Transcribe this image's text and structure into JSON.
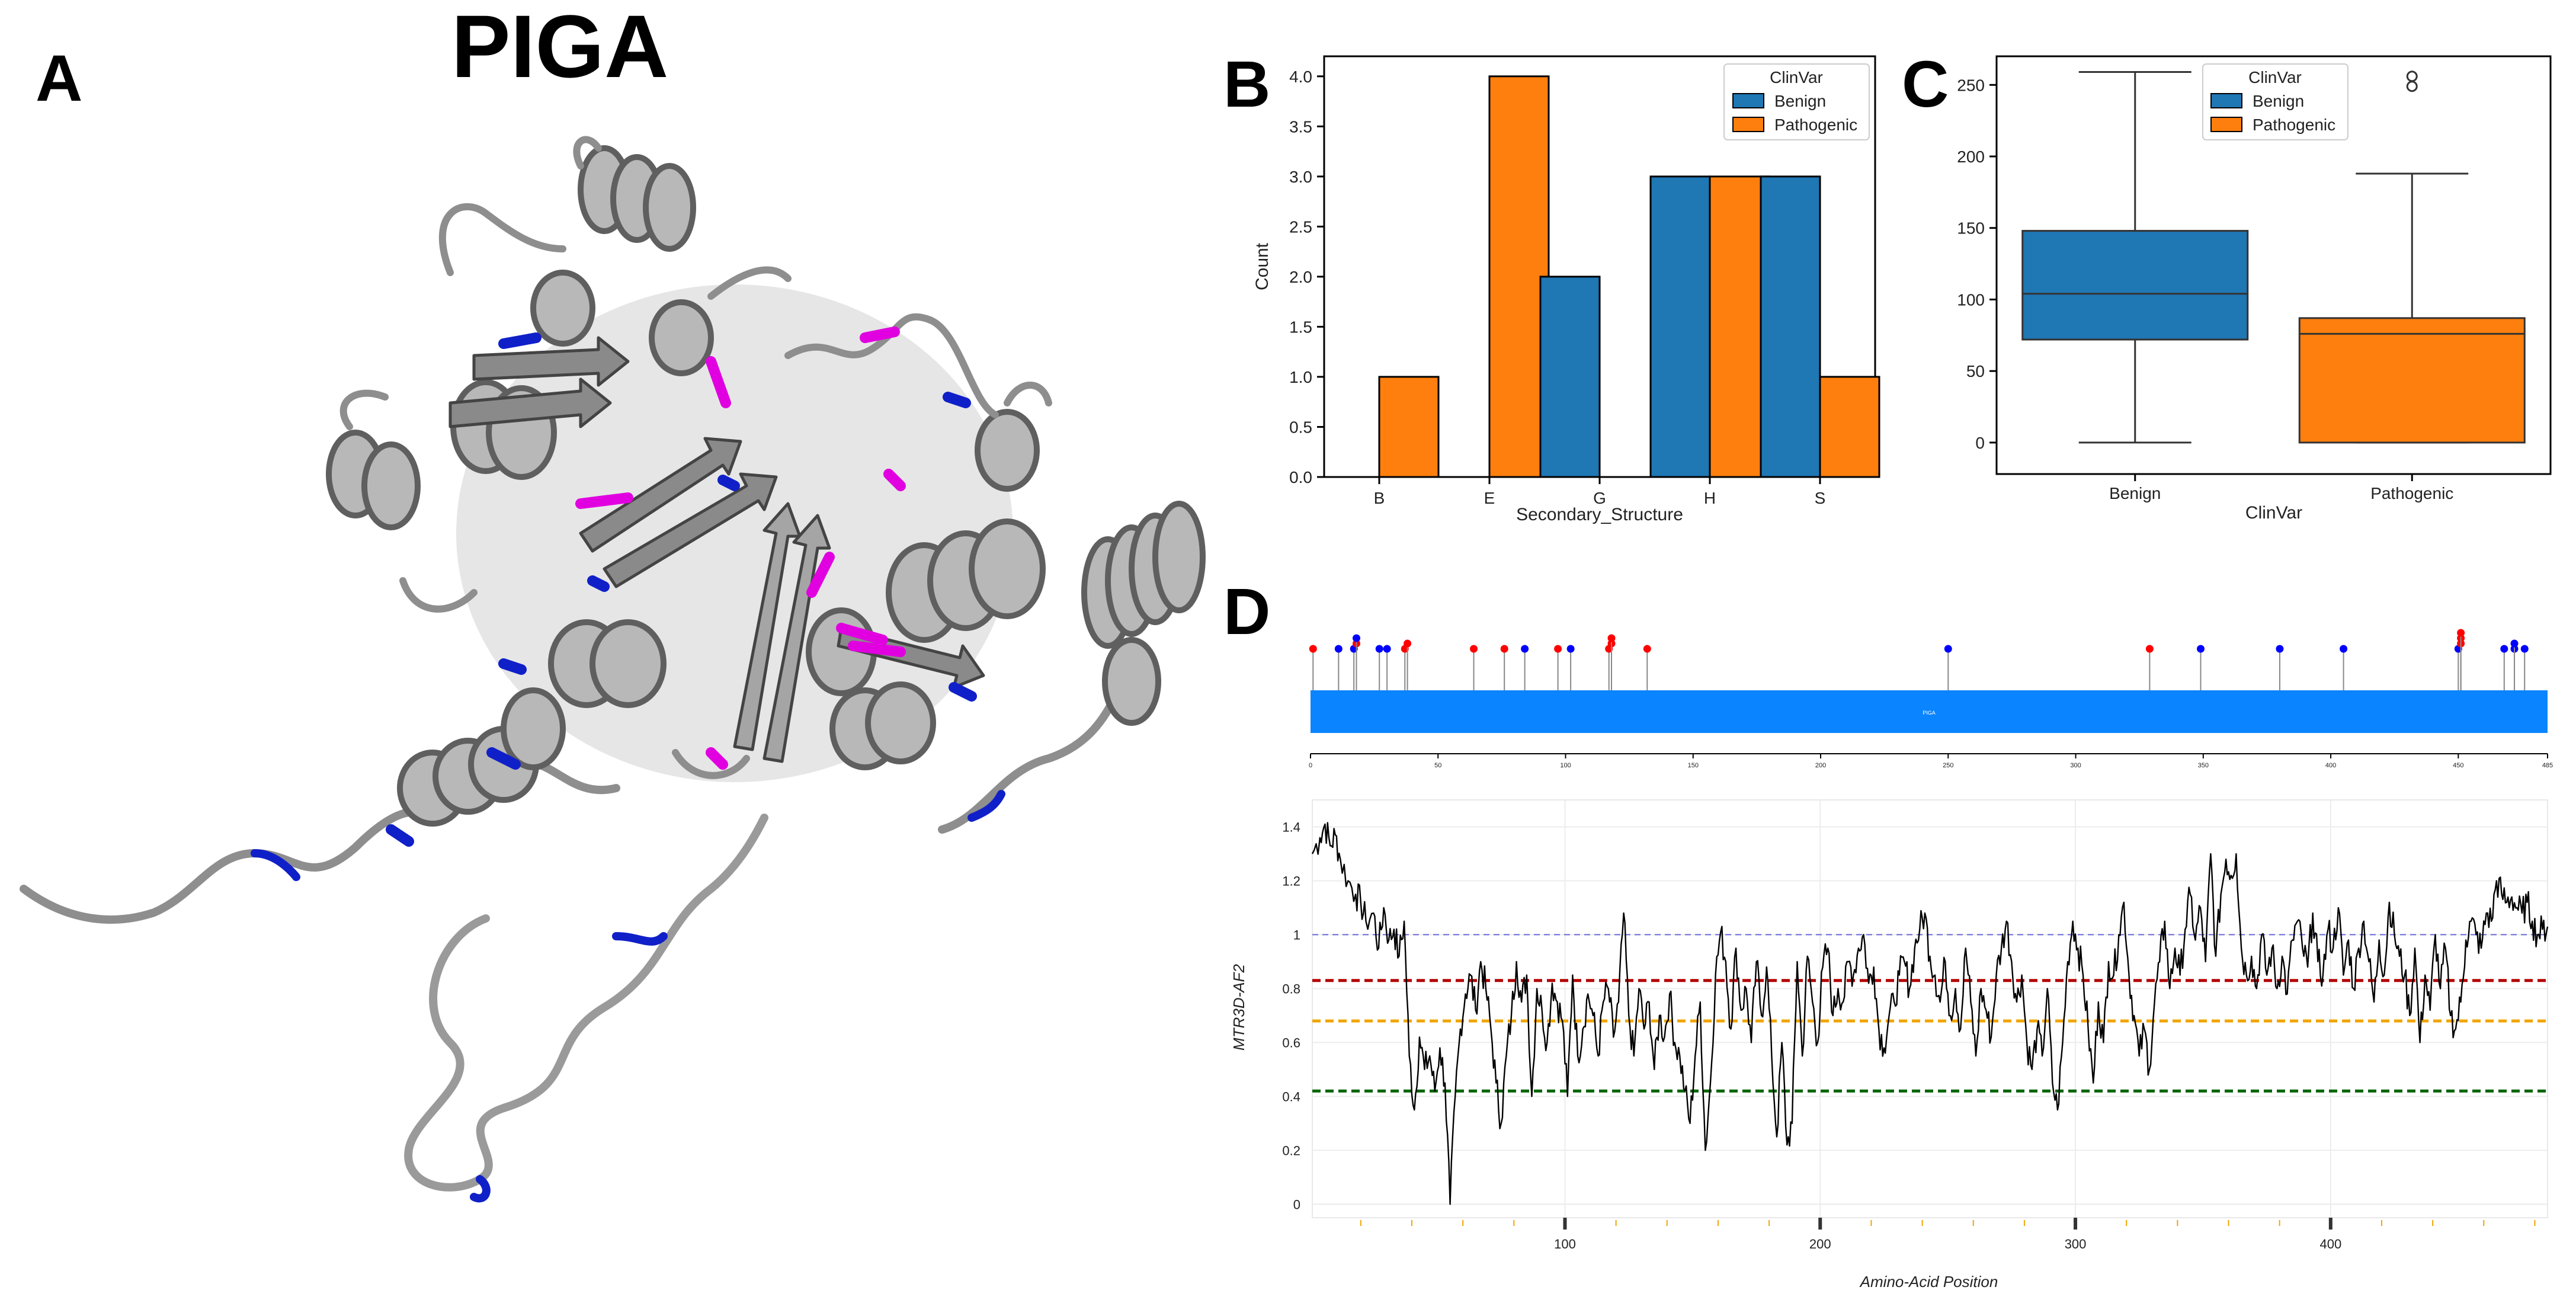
{
  "figure": {
    "title": "PIGA",
    "panel_labels": [
      "A",
      "B",
      "C",
      "D"
    ],
    "colors": {
      "benign": "#1f77b4",
      "pathogenic": "#ff7f0e",
      "lollipop_benign": "#0000ff",
      "lollipop_path": "#ff0000",
      "protein_bar": "#0a84ff",
      "ref1": "#6b6bd6",
      "ref2": "#b30000",
      "ref3": "#f0a500",
      "ref4": "#006400"
    }
  },
  "chart_data": [
    {
      "id": "B",
      "type": "bar",
      "categories": [
        "B",
        "E",
        "G",
        "H",
        "S"
      ],
      "series": [
        {
          "name": "Benign",
          "values": [
            0,
            0,
            2,
            3,
            3
          ]
        },
        {
          "name": "Pathogenic",
          "values": [
            1,
            4,
            0,
            3,
            1
          ]
        }
      ],
      "xlabel": "Secondary_Structure",
      "ylabel": "Count",
      "ylim": [
        0,
        4.2
      ],
      "yticks": [
        "0.0",
        "0.5",
        "1.0",
        "1.5",
        "2.0",
        "2.5",
        "3.0",
        "3.5",
        "4.0"
      ],
      "legend": {
        "title": "ClinVar",
        "entries": [
          "Benign",
          "Pathogenic"
        ],
        "placement": "top-right"
      }
    },
    {
      "id": "C",
      "type": "box",
      "categories": [
        "Benign",
        "Pathogenic"
      ],
      "boxes": [
        {
          "name": "Benign",
          "min": 0,
          "q1": 72,
          "median": 104,
          "q3": 148,
          "max": 259,
          "outliers": []
        },
        {
          "name": "Pathogenic",
          "min": 0,
          "q1": 0,
          "median": 76,
          "q3": 87,
          "max": 188,
          "outliers": [
            249,
            256
          ]
        }
      ],
      "xlabel": "ClinVar",
      "ylabel": "",
      "ylim": [
        -22,
        270
      ],
      "yticks": [
        "0",
        "50",
        "100",
        "150",
        "200",
        "250"
      ],
      "legend": {
        "title": "ClinVar",
        "entries": [
          "Benign",
          "Pathogenic"
        ],
        "placement": "top-center"
      }
    },
    {
      "id": "D-lollipop",
      "type": "lollipop",
      "protein_label": "PIGA",
      "xlim": [
        0,
        485
      ],
      "xticks": [
        "0",
        "50",
        "100",
        "150",
        "200",
        "250",
        "300",
        "350",
        "400",
        "450",
        "485"
      ],
      "variants": [
        {
          "pos": 1,
          "height": 1,
          "class": "pathogenic"
        },
        {
          "pos": 11,
          "height": 1,
          "class": "benign"
        },
        {
          "pos": 17,
          "height": 1,
          "class": "benign"
        },
        {
          "pos": 18,
          "height": 2,
          "class": "pathogenic"
        },
        {
          "pos": 18,
          "height": 3,
          "class": "benign"
        },
        {
          "pos": 27,
          "height": 1,
          "class": "benign"
        },
        {
          "pos": 30,
          "height": 1,
          "class": "benign"
        },
        {
          "pos": 37,
          "height": 1,
          "class": "pathogenic"
        },
        {
          "pos": 38,
          "height": 2,
          "class": "pathogenic"
        },
        {
          "pos": 64,
          "height": 1,
          "class": "pathogenic"
        },
        {
          "pos": 76,
          "height": 1,
          "class": "pathogenic"
        },
        {
          "pos": 84,
          "height": 1,
          "class": "benign"
        },
        {
          "pos": 97,
          "height": 1,
          "class": "pathogenic"
        },
        {
          "pos": 102,
          "height": 1,
          "class": "benign"
        },
        {
          "pos": 117,
          "height": 1,
          "class": "pathogenic"
        },
        {
          "pos": 118,
          "height": 2,
          "class": "pathogenic"
        },
        {
          "pos": 118,
          "height": 3,
          "class": "pathogenic"
        },
        {
          "pos": 132,
          "height": 1,
          "class": "pathogenic"
        },
        {
          "pos": 250,
          "height": 1,
          "class": "benign"
        },
        {
          "pos": 329,
          "height": 1,
          "class": "pathogenic"
        },
        {
          "pos": 349,
          "height": 1,
          "class": "benign"
        },
        {
          "pos": 380,
          "height": 1,
          "class": "benign"
        },
        {
          "pos": 405,
          "height": 1,
          "class": "benign"
        },
        {
          "pos": 450,
          "height": 1,
          "class": "benign"
        },
        {
          "pos": 451,
          "height": 2,
          "class": "pathogenic"
        },
        {
          "pos": 451,
          "height": 3,
          "class": "pathogenic"
        },
        {
          "pos": 451,
          "height": 4,
          "class": "pathogenic"
        },
        {
          "pos": 468,
          "height": 1,
          "class": "benign"
        },
        {
          "pos": 472,
          "height": 1,
          "class": "benign"
        },
        {
          "pos": 472,
          "height": 2,
          "class": "benign"
        },
        {
          "pos": 476,
          "height": 1,
          "class": "benign"
        }
      ]
    },
    {
      "id": "D-line",
      "type": "line",
      "xlabel": "Amino-Acid Position",
      "ylabel": "MTR3D-AF2",
      "xlim": [
        1,
        485
      ],
      "ylim": [
        -0.05,
        1.5
      ],
      "xticks": [
        "100",
        "200",
        "300",
        "400"
      ],
      "yticks": [
        "0",
        "0.2",
        "0.4",
        "0.6",
        "0.8",
        "1",
        "1.2",
        "1.4"
      ],
      "reference_lines": [
        1.0,
        0.83,
        0.68,
        0.42
      ],
      "anchors": [
        [
          1,
          1.3
        ],
        [
          4,
          1.36
        ],
        [
          6,
          1.41
        ],
        [
          8,
          1.33
        ],
        [
          10,
          1.37
        ],
        [
          12,
          1.28
        ],
        [
          15,
          1.2
        ],
        [
          18,
          1.15
        ],
        [
          20,
          1.12
        ],
        [
          22,
          1.05
        ],
        [
          25,
          1.08
        ],
        [
          27,
          0.95
        ],
        [
          29,
          1.1
        ],
        [
          31,
          0.98
        ],
        [
          33,
          1.02
        ],
        [
          35,
          0.92
        ],
        [
          37,
          1.05
        ],
        [
          39,
          0.55
        ],
        [
          41,
          0.35
        ],
        [
          43,
          0.62
        ],
        [
          45,
          0.5
        ],
        [
          47,
          0.55
        ],
        [
          49,
          0.42
        ],
        [
          51,
          0.58
        ],
        [
          53,
          0.45
        ],
        [
          55,
          0.0
        ],
        [
          57,
          0.4
        ],
        [
          59,
          0.65
        ],
        [
          61,
          0.78
        ],
        [
          63,
          0.85
        ],
        [
          65,
          0.72
        ],
        [
          67,
          0.9
        ],
        [
          69,
          0.8
        ],
        [
          71,
          0.65
        ],
        [
          73,
          0.45
        ],
        [
          75,
          0.3
        ],
        [
          77,
          0.55
        ],
        [
          79,
          0.7
        ],
        [
          81,
          0.9
        ],
        [
          83,
          0.75
        ],
        [
          85,
          0.85
        ],
        [
          87,
          0.4
        ],
        [
          89,
          0.8
        ],
        [
          91,
          0.72
        ],
        [
          93,
          0.6
        ],
        [
          95,
          0.82
        ],
        [
          97,
          0.75
        ],
        [
          99,
          0.68
        ],
        [
          101,
          0.4
        ],
        [
          103,
          0.85
        ],
        [
          105,
          0.55
        ],
        [
          107,
          0.65
        ],
        [
          109,
          0.78
        ],
        [
          111,
          0.7
        ],
        [
          113,
          0.55
        ],
        [
          115,
          0.75
        ],
        [
          117,
          0.8
        ],
        [
          119,
          0.62
        ],
        [
          121,
          0.75
        ],
        [
          123,
          1.08
        ],
        [
          125,
          0.7
        ],
        [
          127,
          0.55
        ],
        [
          129,
          0.8
        ],
        [
          131,
          0.65
        ],
        [
          133,
          0.75
        ],
        [
          135,
          0.5
        ],
        [
          137,
          0.7
        ],
        [
          139,
          0.62
        ],
        [
          141,
          0.78
        ],
        [
          143,
          0.6
        ],
        [
          145,
          0.55
        ],
        [
          147,
          0.42
        ],
        [
          149,
          0.3
        ],
        [
          151,
          0.55
        ],
        [
          153,
          0.75
        ],
        [
          155,
          0.2
        ],
        [
          157,
          0.45
        ],
        [
          159,
          0.85
        ],
        [
          161,
          1.01
        ],
        [
          163,
          0.9
        ],
        [
          165,
          0.65
        ],
        [
          167,
          0.95
        ],
        [
          169,
          0.72
        ],
        [
          171,
          0.8
        ],
        [
          173,
          0.6
        ],
        [
          175,
          0.9
        ],
        [
          177,
          0.7
        ],
        [
          179,
          0.88
        ],
        [
          181,
          0.55
        ],
        [
          183,
          0.25
        ],
        [
          185,
          0.6
        ],
        [
          187,
          0.22
        ],
        [
          189,
          0.3
        ],
        [
          191,
          0.9
        ],
        [
          193,
          0.55
        ],
        [
          195,
          0.92
        ],
        [
          197,
          0.75
        ],
        [
          199,
          0.6
        ],
        [
          201,
          0.88
        ],
        [
          203,
          0.95
        ],
        [
          205,
          0.7
        ],
        [
          207,
          0.8
        ],
        [
          209,
          0.75
        ],
        [
          211,
          0.9
        ],
        [
          213,
          0.85
        ],
        [
          215,
          0.95
        ],
        [
          217,
          1.0
        ],
        [
          219,
          0.82
        ],
        [
          221,
          0.88
        ],
        [
          223,
          0.65
        ],
        [
          225,
          0.58
        ],
        [
          227,
          0.7
        ],
        [
          229,
          0.75
        ],
        [
          231,
          0.85
        ],
        [
          233,
          0.9
        ],
        [
          235,
          0.8
        ],
        [
          237,
          0.95
        ],
        [
          239,
          1.02
        ],
        [
          241,
          1.08
        ],
        [
          243,
          0.92
        ],
        [
          245,
          0.85
        ],
        [
          247,
          0.75
        ],
        [
          249,
          0.9
        ],
        [
          251,
          0.7
        ],
        [
          253,
          0.8
        ],
        [
          255,
          0.65
        ],
        [
          257,
          0.95
        ],
        [
          259,
          0.75
        ],
        [
          261,
          0.55
        ],
        [
          263,
          0.8
        ],
        [
          265,
          0.72
        ],
        [
          267,
          0.62
        ],
        [
          269,
          0.85
        ],
        [
          271,
          0.95
        ],
        [
          273,
          1.05
        ],
        [
          275,
          0.9
        ],
        [
          277,
          0.75
        ],
        [
          279,
          0.85
        ],
        [
          281,
          0.6
        ],
        [
          283,
          0.5
        ],
        [
          285,
          0.65
        ],
        [
          287,
          0.55
        ],
        [
          289,
          0.8
        ],
        [
          291,
          0.45
        ],
        [
          293,
          0.35
        ],
        [
          295,
          0.6
        ],
        [
          297,
          0.9
        ],
        [
          299,
          1.05
        ],
        [
          301,
          0.95
        ],
        [
          303,
          0.85
        ],
        [
          305,
          0.65
        ],
        [
          307,
          0.45
        ],
        [
          309,
          0.75
        ],
        [
          311,
          0.6
        ],
        [
          313,
          0.9
        ],
        [
          315,
          0.85
        ],
        [
          317,
          1.0
        ],
        [
          319,
          1.12
        ],
        [
          321,
          0.85
        ],
        [
          323,
          0.7
        ],
        [
          325,
          0.55
        ],
        [
          327,
          0.65
        ],
        [
          329,
          0.5
        ],
        [
          331,
          0.75
        ],
        [
          333,
          0.9
        ],
        [
          335,
          1.05
        ],
        [
          337,
          0.8
        ],
        [
          339,
          0.95
        ],
        [
          341,
          0.85
        ],
        [
          343,
          1.02
        ],
        [
          345,
          1.15
        ],
        [
          347,
          0.98
        ],
        [
          349,
          1.1
        ],
        [
          351,
          0.9
        ],
        [
          353,
          1.3
        ],
        [
          355,
          0.92
        ],
        [
          357,
          1.15
        ],
        [
          359,
          1.28
        ],
        [
          361,
          1.22
        ],
        [
          363,
          1.3
        ],
        [
          365,
          0.95
        ],
        [
          367,
          0.85
        ],
        [
          369,
          0.92
        ],
        [
          371,
          0.8
        ],
        [
          373,
          1.0
        ],
        [
          375,
          0.85
        ],
        [
          377,
          0.95
        ],
        [
          379,
          0.8
        ],
        [
          381,
          0.92
        ],
        [
          383,
          0.78
        ],
        [
          385,
          0.98
        ],
        [
          387,
          1.05
        ],
        [
          389,
          0.95
        ],
        [
          391,
          0.88
        ],
        [
          393,
          1.08
        ],
        [
          395,
          0.9
        ],
        [
          397,
          0.85
        ],
        [
          399,
          1.02
        ],
        [
          401,
          0.95
        ],
        [
          403,
          1.1
        ],
        [
          405,
          0.85
        ],
        [
          407,
          0.98
        ],
        [
          409,
          0.8
        ],
        [
          411,
          0.95
        ],
        [
          413,
          1.05
        ],
        [
          415,
          0.9
        ],
        [
          417,
          0.75
        ],
        [
          419,
          0.98
        ],
        [
          421,
          0.85
        ],
        [
          423,
          1.12
        ],
        [
          425,
          1.0
        ],
        [
          427,
          0.92
        ],
        [
          429,
          0.85
        ],
        [
          431,
          0.7
        ],
        [
          433,
          0.95
        ],
        [
          435,
          0.6
        ],
        [
          437,
          0.85
        ],
        [
          439,
          0.72
        ],
        [
          441,
          1.0
        ],
        [
          443,
          0.8
        ],
        [
          445,
          0.95
        ],
        [
          447,
          0.7
        ],
        [
          449,
          0.65
        ],
        [
          451,
          0.75
        ],
        [
          453,
          0.98
        ],
        [
          455,
          1.05
        ],
        [
          457,
          1.0
        ],
        [
          459,
          0.95
        ],
        [
          461,
          1.08
        ],
        [
          463,
          1.05
        ],
        [
          465,
          1.2
        ],
        [
          467,
          1.15
        ],
        [
          469,
          1.12
        ],
        [
          471,
          1.14
        ],
        [
          473,
          1.1
        ],
        [
          475,
          1.08
        ],
        [
          477,
          1.12
        ],
        [
          479,
          1.05
        ],
        [
          481,
          1.0
        ],
        [
          483,
          1.02
        ],
        [
          485,
          1.03
        ]
      ]
    }
  ]
}
